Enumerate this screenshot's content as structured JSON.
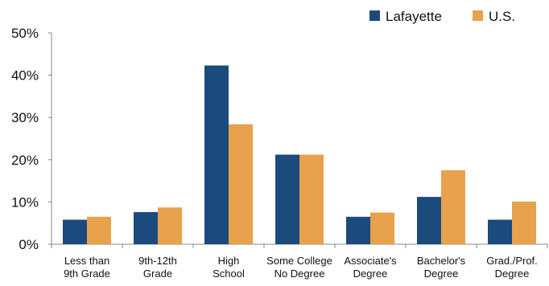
{
  "chart_data": {
    "type": "bar",
    "categories": [
      [
        "Less than",
        "9th Grade"
      ],
      [
        "9th-12th",
        "Grade"
      ],
      [
        "High",
        "School"
      ],
      [
        "Some College",
        "No Degree"
      ],
      [
        "Associate's",
        "Degree"
      ],
      [
        "Bachelor's",
        "Degree"
      ],
      [
        "Grad./Prof.",
        "Degree"
      ]
    ],
    "series": [
      {
        "name": "Lafayette",
        "color": "#1b4a7d",
        "values": [
          5.8,
          7.6,
          42.3,
          21.2,
          6.5,
          11.2,
          5.8
        ]
      },
      {
        "name": "U.S.",
        "color": "#e8a14c",
        "values": [
          6.5,
          8.7,
          28.4,
          21.2,
          7.5,
          17.5,
          10.1
        ]
      }
    ],
    "y_ticks": [
      "0%",
      "10%",
      "20%",
      "30%",
      "40%",
      "50%"
    ],
    "ylim": [
      0,
      50
    ],
    "grid": false,
    "legend": "top-right",
    "title": "",
    "xlabel": "",
    "ylabel": ""
  }
}
